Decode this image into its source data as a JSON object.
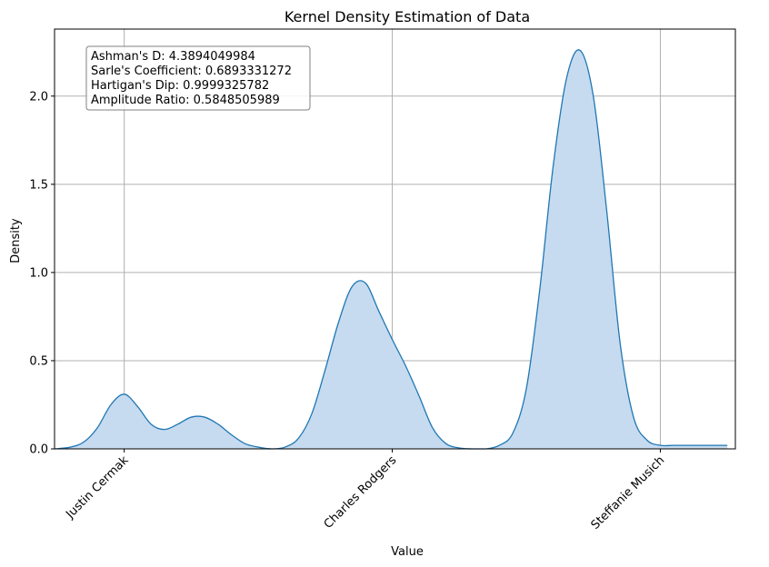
{
  "chart_data": {
    "type": "area",
    "title": "Kernel Density Estimation of Data",
    "xlabel": "Value",
    "ylabel": "Density",
    "x_ticks": [
      "Justin Cermak",
      "Charles Rodgers",
      "Steffanie Musich"
    ],
    "y_ticks": [
      "0.0",
      "0.5",
      "1.0",
      "1.5",
      "2.0"
    ],
    "ylim": [
      0,
      2.38
    ],
    "xlim": [
      -0.26,
      2.28
    ],
    "grid": true,
    "legend": "none",
    "line_color": "#1f77b4",
    "fill_color": "#c6dbef",
    "curve": {
      "x": [
        -0.26,
        -0.2,
        -0.15,
        -0.1,
        -0.05,
        0.0,
        0.05,
        0.1,
        0.15,
        0.2,
        0.25,
        0.3,
        0.35,
        0.4,
        0.45,
        0.5,
        0.55,
        0.6,
        0.65,
        0.7,
        0.75,
        0.8,
        0.85,
        0.9,
        0.95,
        1.0,
        1.05,
        1.1,
        1.15,
        1.2,
        1.25,
        1.3,
        1.35,
        1.4,
        1.45,
        1.5,
        1.55,
        1.6,
        1.65,
        1.7,
        1.75,
        1.8,
        1.85,
        1.9,
        1.95,
        2.0,
        2.05,
        2.1,
        2.15,
        2.2,
        2.25
      ],
      "y": [
        0.0,
        0.01,
        0.04,
        0.12,
        0.25,
        0.31,
        0.24,
        0.14,
        0.11,
        0.14,
        0.18,
        0.18,
        0.14,
        0.08,
        0.03,
        0.01,
        0.0,
        0.01,
        0.06,
        0.2,
        0.45,
        0.72,
        0.92,
        0.94,
        0.78,
        0.62,
        0.47,
        0.3,
        0.12,
        0.03,
        0.005,
        0.0,
        0.0,
        0.02,
        0.09,
        0.34,
        0.9,
        1.6,
        2.1,
        2.26,
        2.0,
        1.35,
        0.6,
        0.18,
        0.05,
        0.02,
        0.02,
        0.02,
        0.02,
        0.02,
        0.02
      ]
    }
  },
  "stats_box": {
    "line1": "Ashman's D: 4.3894049984",
    "line2": "Sarle's Coefficient: 0.6893331272",
    "line3": "Hartigan's Dip: 0.9999325782",
    "line4": "Amplitude Ratio: 0.5848505989"
  }
}
